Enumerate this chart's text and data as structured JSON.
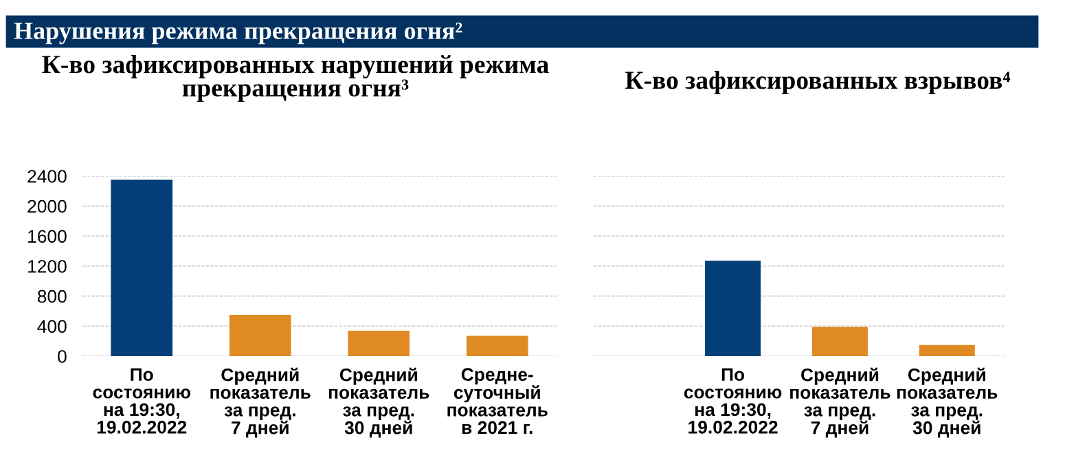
{
  "chart_data": [
    {
      "type": "bar",
      "title": "Нарушения режима прекращения огня²",
      "subtitle": "К-во зафиксированных нарушений режима прекращения огня³",
      "categories": [
        "По\nсостоянию\nна 19:30,\n19.02.2022",
        "Средний\nпоказатель\nза пред.\n7 дней",
        "Средний\nпоказатель\nза пред.\n30 дней",
        "Средне-\nсуточный\nпоказатель\nв 2021 г."
      ],
      "values": [
        2350,
        550,
        340,
        270
      ],
      "colors": [
        "#023f78",
        "#e08a24",
        "#e08a24",
        "#e08a24"
      ],
      "ylim": [
        0,
        2400
      ],
      "yticks": [
        0,
        400,
        800,
        1200,
        1600,
        2000,
        2400
      ],
      "grid": "y"
    },
    {
      "type": "bar",
      "title": "К-во зафиксированных взрывов⁴",
      "categories": [
        "По\nсостоянию\nна 19:30,\n19.02.2022",
        "Средний\nпоказатель\nза пред.\n7 дней",
        "Средний\nпоказатель\nза пред.\n30 дней"
      ],
      "values": [
        1270,
        390,
        150
      ],
      "colors": [
        "#023f78",
        "#e08a24",
        "#e08a24"
      ],
      "ylim": [
        0,
        2400
      ],
      "yticks": [
        0,
        400,
        800,
        1200,
        1600,
        2000,
        2400
      ],
      "grid": "y",
      "tick_labels": "x"
    }
  ]
}
